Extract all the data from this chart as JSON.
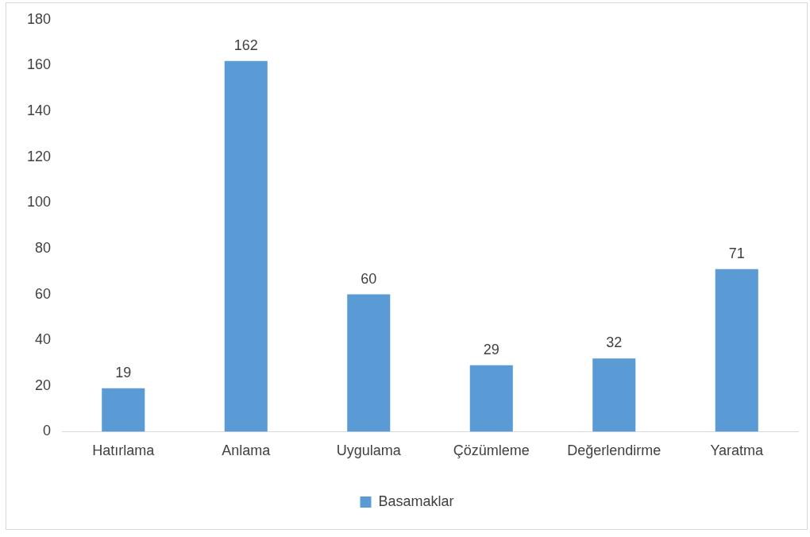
{
  "chart_data": {
    "type": "bar",
    "categories": [
      "Hatırlama",
      "Anlama",
      "Uygulama",
      "Çözümleme",
      "Değerlendirme",
      "Yaratma"
    ],
    "series": [
      {
        "name": "Basamaklar",
        "color": "#5b9bd5",
        "values": [
          19,
          162,
          60,
          29,
          32,
          71
        ]
      }
    ],
    "ylim": [
      0,
      180
    ],
    "yticks": [
      0,
      20,
      40,
      60,
      80,
      100,
      120,
      140,
      160,
      180
    ],
    "grid": false,
    "legend": "bottom",
    "data_labels": true
  }
}
